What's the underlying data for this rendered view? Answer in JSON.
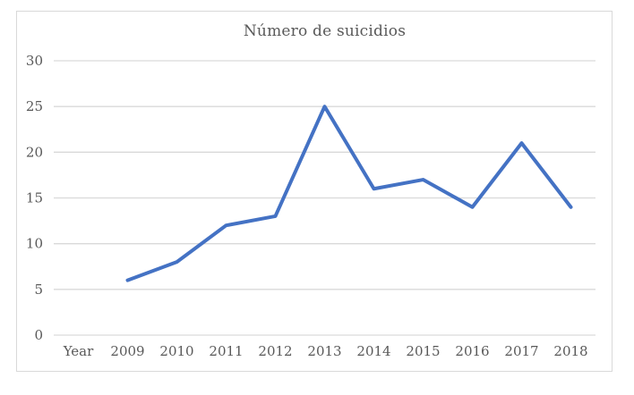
{
  "chart_data": {
    "type": "line",
    "title": "Número de suicidios",
    "x_tick_labels": [
      "Year",
      "2009",
      "2010",
      "2011",
      "2012",
      "2013",
      "2014",
      "2015",
      "2016",
      "2017",
      "2018"
    ],
    "y_ticks": [
      0,
      5,
      10,
      15,
      20,
      25,
      30
    ],
    "ylim": [
      0,
      30
    ],
    "grid": "horizontal",
    "legend": "none",
    "series": [
      {
        "name": "Número de suicidios",
        "values": [
          null,
          6,
          8,
          12,
          13,
          25,
          16,
          17,
          14,
          21,
          14
        ]
      }
    ],
    "colors": {
      "line": "#4472C4",
      "gridline": "#D9D9D9",
      "border": "#D9D9D9",
      "text": "#595959",
      "background": "#FFFFFF"
    }
  }
}
